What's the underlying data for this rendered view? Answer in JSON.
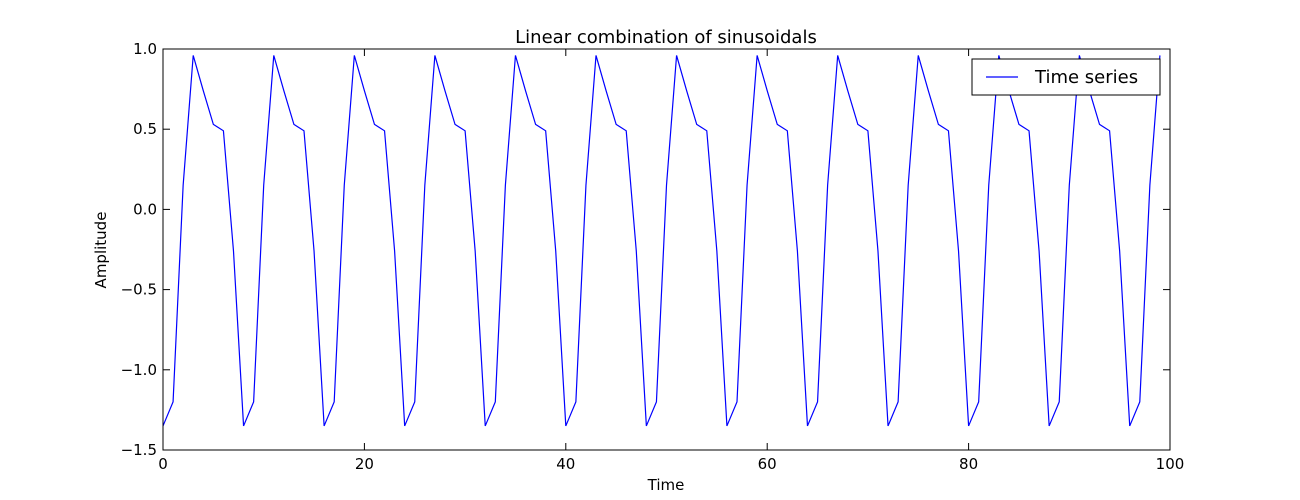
{
  "chart_data": {
    "type": "line",
    "title": "Linear combination of sinusoidals",
    "xlabel": "Time",
    "ylabel": "Amplitude",
    "xlim": [
      0,
      100
    ],
    "ylim": [
      -1.5,
      1.0
    ],
    "x_ticks": [
      0,
      20,
      40,
      60,
      80,
      100
    ],
    "x_tick_labels": [
      "0",
      "20",
      "40",
      "60",
      "80",
      "100"
    ],
    "y_ticks": [
      -1.5,
      -1.0,
      -0.5,
      0.0,
      0.5,
      1.0
    ],
    "y_tick_labels": [
      "−1.5",
      "−1.0",
      "−0.5",
      "0.0",
      "0.5",
      "1.0"
    ],
    "grid": false,
    "legend": {
      "position": "top-right"
    },
    "series": [
      {
        "name": "Time series",
        "color": "#0000ff",
        "period": 8,
        "pattern": [
          -1.35,
          -1.2,
          0.15,
          0.96,
          0.74,
          0.53,
          0.49,
          -0.26
        ],
        "x_start": 0,
        "x_end": 99
      }
    ]
  }
}
